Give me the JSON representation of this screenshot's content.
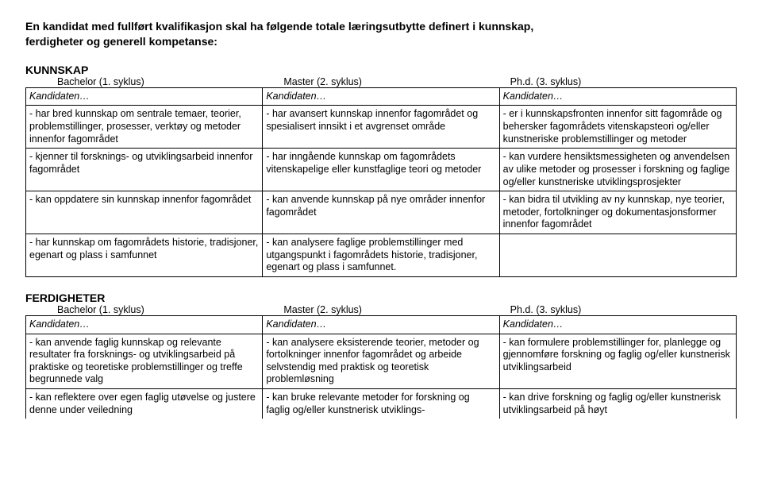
{
  "title_line1": "En kandidat med fullført kvalifikasjon skal ha følgende totale læringsutbytte definert i kunnskap,",
  "title_line2": "ferdigheter og generell kompetanse:",
  "sections": {
    "kunnskap": {
      "header": "KUNNSKAP",
      "col_headers": [
        "Bachelor (1. syklus)",
        "Master (2. syklus)",
        "Ph.d. (3. syklus)"
      ],
      "kandidaten": "Kandidaten…",
      "rows": [
        [
          "- har bred kunnskap om sentrale temaer, teorier, problemstillinger, prosesser, verktøy og metoder innenfor fagområdet",
          "- har avansert kunnskap innenfor fagområdet og spesialisert innsikt i et avgrenset område",
          "- er i kunnskapsfronten innenfor sitt fagområde og behersker fagområdets vitenskapsteori og/eller kunstneriske problemstillinger og metoder"
        ],
        [
          "- kjenner til forsknings- og utviklingsarbeid innenfor fagområdet",
          "- har inngående kunnskap om fagområdets vitenskapelige eller kunstfaglige teori og metoder",
          "- kan vurdere hensiktsmessigheten og anvendelsen av ulike metoder og prosesser i forskning og faglige og/eller kunstneriske utviklingsprosjekter"
        ],
        [
          "- kan oppdatere sin kunnskap innenfor fagområdet",
          "- kan anvende kunnskap på nye områder innenfor fagområdet",
          "- kan bidra til utvikling av ny kunnskap, nye teorier, metoder, fortolkninger og dokumentasjonsformer innenfor fagområdet"
        ],
        [
          "- har kunnskap om fagområdets historie, tradisjoner, egenart og plass i samfunnet",
          "- kan analysere faglige problemstillinger med utgangspunkt i fagområdets historie, tradisjoner, egenart og plass i samfunnet.",
          ""
        ]
      ]
    },
    "ferdigheter": {
      "header": "FERDIGHETER",
      "col_headers": [
        "Bachelor (1. syklus)",
        "Master (2. syklus)",
        "Ph.d. (3. syklus)"
      ],
      "kandidaten": "Kandidaten…",
      "rows": [
        [
          "- kan anvende faglig kunnskap og relevante resultater fra forsknings- og utviklingsarbeid på praktiske og teoretiske problemstillinger og treffe begrunnede valg",
          "- kan analysere eksisterende teorier, metoder og fortolkninger innenfor fagområdet og arbeide selvstendig med praktisk og teoretisk problemløsning",
          "- kan formulere problemstillinger for, planlegge og gjennomføre forskning og faglig og/eller kunstnerisk utviklingsarbeid"
        ],
        [
          "- kan reflektere over egen faglig utøvelse og justere denne under veiledning",
          "- kan bruke relevante metoder for forskning og faglig og/eller kunstnerisk utviklings-",
          "- kan drive forskning og faglig og/eller kunstnerisk utviklingsarbeid på høyt"
        ]
      ]
    }
  }
}
